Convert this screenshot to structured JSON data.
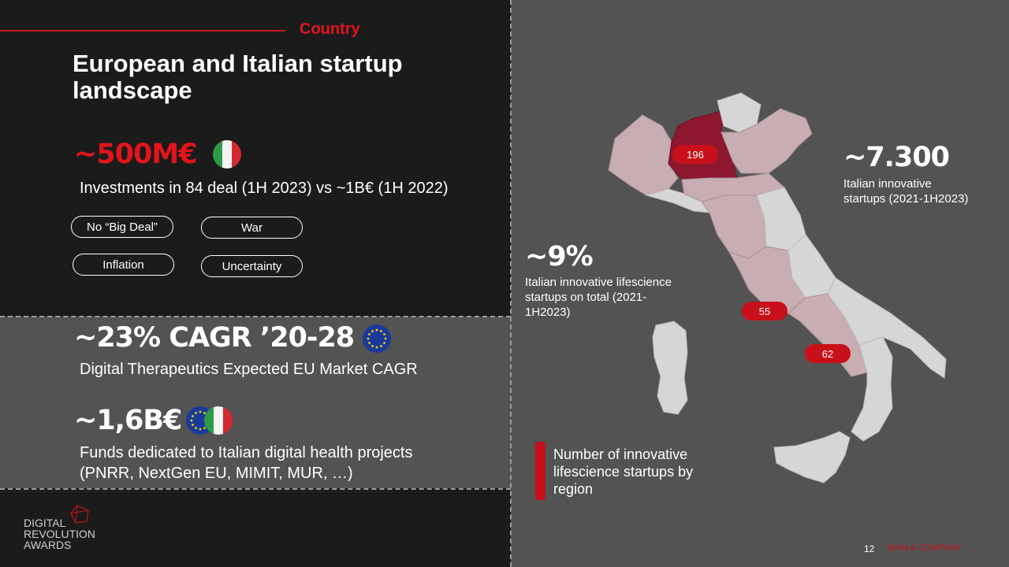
{
  "header": {
    "section_label": "Country",
    "title": "European and Italian startup landscape"
  },
  "investments": {
    "value": "~500M€",
    "description": "Investments in 84 deal (1H 2023) vs ~1B€ (1H 2022)",
    "pills": [
      "No “Big Deal”",
      "War",
      "Inflation",
      "Uncertainty"
    ]
  },
  "cagr": {
    "value": "~23% CAGR ’20-28",
    "description": "Digital Therapeutics Expected EU Market CAGR"
  },
  "funds": {
    "value": "~1,6B€",
    "description_line1": "Funds dedicated to Italian digital health projects",
    "description_line2": "(PNRR, NextGen EU, MIMIT, MUR, …)"
  },
  "map_stats": {
    "startups_value": "~7.300",
    "startups_label_line1": "Italian innovative",
    "startups_label_line2": "startups (2021-1H2023)",
    "lifescience_value": "~9%",
    "lifescience_label_line1": "Italian innovative lifescience",
    "lifescience_label_line2": "startups on total (2021-",
    "lifescience_label_line3": "1H2023)",
    "region_badges": [
      "196",
      "55",
      "62"
    ]
  },
  "legend": {
    "text_line1": "Number of innovative",
    "text_line2": "lifescience startups by",
    "text_line3": "region"
  },
  "footer": {
    "page_number": "12",
    "brand": "BAIN & COMPANY",
    "logo_line1": "DIGITAL",
    "logo_line2": "REVOLUTION",
    "logo_line3": "AWARDS"
  },
  "colors": {
    "accent_red": "#e3141b",
    "map_highlight": "#8e1730",
    "map_pink": "#c8adb2",
    "map_grey": "#d6d6d6"
  }
}
